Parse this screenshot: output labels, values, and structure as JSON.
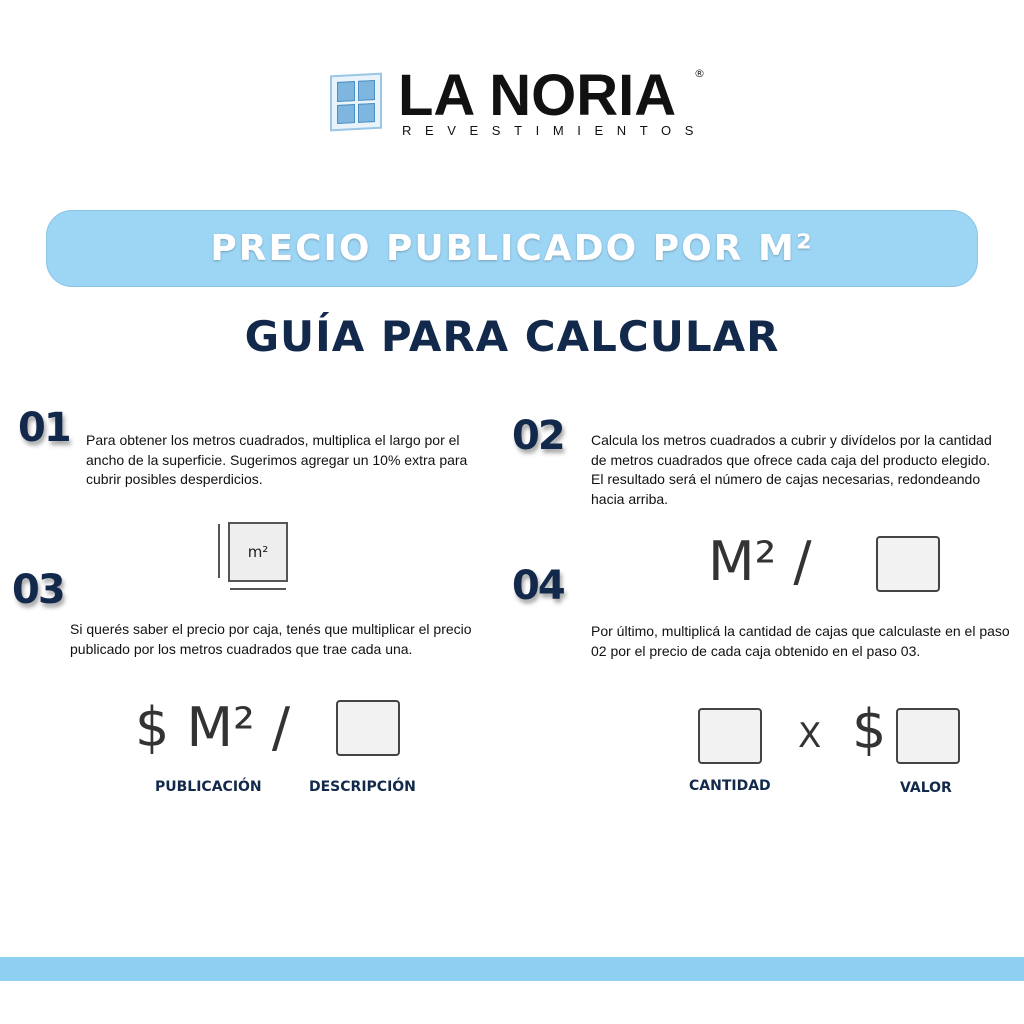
{
  "logo": {
    "name": "LA NORIA",
    "subtitle": "REVESTIMIENTOS",
    "registered": "®"
  },
  "banner": "PRECIO PUBLICADO POR M²",
  "title": "GUÍA PARA CALCULAR",
  "steps": [
    {
      "number": "01",
      "text": "Para obtener los metros cuadrados, multiplica el largo por el ancho de la superficie. Sugerimos agregar un 10% extra para cubrir posibles desperdicios."
    },
    {
      "number": "02",
      "text": "Calcula los metros cuadrados a cubrir y divídelos por la cantidad de metros cuadrados que ofrece cada caja del producto elegido. El resultado será el número de cajas necesarias, redondeando hacia arriba."
    },
    {
      "number": "03",
      "text": "Si querés saber el precio por caja, tenés que multiplicar el precio publicado por los metros cuadrados que trae cada una."
    },
    {
      "number": "04",
      "text": "Por último, multiplicá la cantidad de cajas que calculaste en el paso 02 por el precio de cada caja obtenido en el paso 03."
    }
  ],
  "icons": {
    "square_label": "m²",
    "formula2": "M² /",
    "formula3": "$ M² /",
    "x": "X",
    "dollar": "$"
  },
  "labels": {
    "publicacion": "PUBLICACIÓN",
    "descripcion": "DESCRIPCIÓN",
    "cantidad": "CANTIDAD",
    "valor": "VALOR"
  },
  "colors": {
    "navy": "#13294b",
    "light_blue": "#9dd5f5"
  }
}
